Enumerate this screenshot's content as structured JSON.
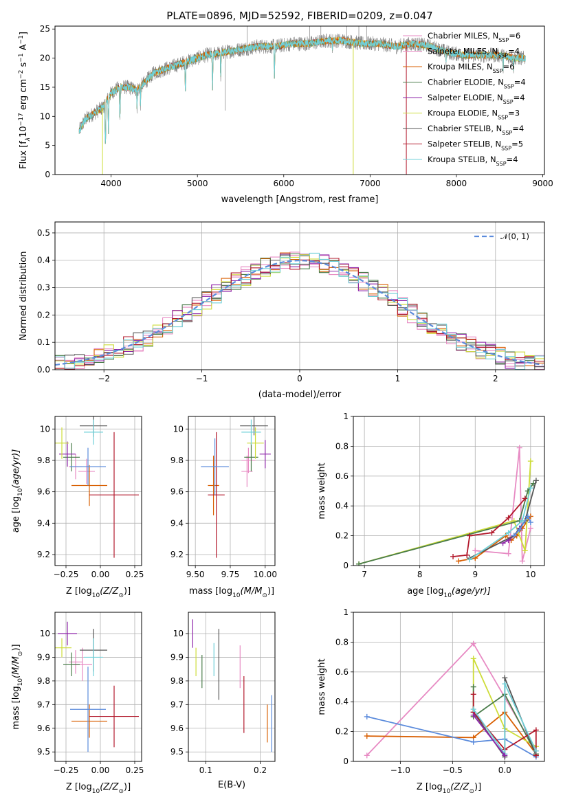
{
  "colors": {
    "Chabrier MILES": "#e78ac3",
    "Salpeter MILES": "#e78ac3",
    "Kroupa MILES": "#d95f02",
    "Chabrier ELODIE": "#4a7c4a",
    "Salpeter ELODIE": "#8e24aa",
    "Kroupa ELODIE": "#cddc39",
    "Chabrier STELIB": "#555555",
    "Salpeter STELIB": "#b2182b",
    "Kroupa STELIB": "#70d0d8",
    "blue": "#5b8bdc",
    "normal": "#5b8bdc"
  },
  "chart_data": [
    {
      "id": "spectrum",
      "type": "line",
      "title": "PLATE=0896, MJD=52592, FIBERID=0209, z=0.047",
      "xlabel": "wavelength [Angstrom, rest frame]",
      "ylabel_parts": [
        "Flux [f",
        "λ",
        "10",
        "−17",
        " erg cm",
        "−2",
        " s",
        "−1",
        " A",
        "−1",
        "]"
      ],
      "xlim": [
        3350,
        9020
      ],
      "ylim": [
        0,
        25.5
      ],
      "xticks": [
        4000,
        5000,
        6000,
        7000,
        8000,
        9000
      ],
      "yticks": [
        0,
        5,
        10,
        15,
        20,
        25
      ],
      "grid": false,
      "legend_position": "top-right",
      "legend": [
        {
          "model": "Chabrier MILES",
          "nssp": "6"
        },
        {
          "model": "Salpeter MILES",
          "nssp": "4"
        },
        {
          "model": "Kroupa MILES",
          "nssp": "6"
        },
        {
          "model": "Chabrier ELODIE",
          "nssp": "4"
        },
        {
          "model": "Salpeter ELODIE",
          "nssp": "4"
        },
        {
          "model": "Kroupa ELODIE",
          "nssp": "3"
        },
        {
          "model": "Chabrier STELIB",
          "nssp": "4"
        },
        {
          "model": "Salpeter STELIB",
          "nssp": "5"
        },
        {
          "model": "Kroupa STELIB",
          "nssp": "4"
        }
      ],
      "continuum": {
        "x": [
          3630,
          3700,
          3800,
          3900,
          4000,
          4100,
          4200,
          4300,
          4400,
          4500,
          4700,
          4900,
          5100,
          5300,
          5500,
          5700,
          5900,
          6100,
          6300,
          6500,
          6700,
          6900,
          7100,
          7300,
          7500,
          7700,
          7900,
          8100,
          8300,
          8500,
          8700,
          8800
        ],
        "y": [
          7.5,
          9.5,
          10.5,
          11.5,
          14.0,
          15.0,
          15.0,
          14.5,
          16.0,
          17.5,
          18.5,
          19.5,
          20.5,
          21.0,
          21.5,
          22.0,
          22.0,
          22.5,
          22.5,
          23.0,
          23.0,
          22.5,
          22.5,
          22.0,
          22.5,
          22.0,
          21.0,
          20.5,
          20.5,
          20.5,
          20.0,
          20.0
        ]
      },
      "absorption_lines": [
        {
          "x": 3934,
          "y": 4.5
        },
        {
          "x": 3969,
          "y": 7.0
        },
        {
          "x": 4102,
          "y": 9.0
        },
        {
          "x": 4300,
          "y": 10.5
        },
        {
          "x": 4340,
          "y": 11.0
        },
        {
          "x": 4861,
          "y": 13.5
        },
        {
          "x": 5175,
          "y": 14.5
        },
        {
          "x": 5270,
          "y": 16.0
        },
        {
          "x": 5892,
          "y": 16.5
        },
        {
          "x": 6563,
          "y": 20.5
        },
        {
          "x": 7880,
          "y": 18.5
        },
        {
          "x": 8542,
          "y": 17.0
        },
        {
          "x": 8662,
          "y": 17.0
        }
      ],
      "data_spikes": [
        {
          "x": 5577,
          "y": 25.5
        },
        {
          "x": 6300,
          "y": 25.5
        },
        {
          "x": 6430,
          "y": 25.5
        },
        {
          "x": 6730,
          "y": 25.5
        },
        {
          "x": 6870,
          "y": 25.5
        },
        {
          "x": 6960,
          "y": 25.5
        },
        {
          "x": 5320,
          "y": 11.0
        }
      ],
      "model_drops": [
        {
          "x": 3900,
          "y": 0,
          "model": "Kroupa ELODIE"
        },
        {
          "x": 6805,
          "y": 0,
          "model": "Kroupa ELODIE"
        },
        {
          "x": 7420,
          "y": 0,
          "model": "Salpeter STELIB"
        }
      ]
    },
    {
      "id": "residuals",
      "type": "histogram",
      "xlabel": "(data-model)/error",
      "ylabel": "Normed distribution",
      "xlim": [
        -2.5,
        2.5
      ],
      "ylim": [
        0,
        0.54
      ],
      "xticks": [
        -2,
        -1,
        0,
        1,
        2
      ],
      "yticks": [
        0.0,
        0.1,
        0.2,
        0.3,
        0.4,
        0.5
      ],
      "grid": true,
      "legend_position": "top-right",
      "legend": [
        {
          "name": "𝒩(0, 1)"
        }
      ],
      "bin_width": 0.1,
      "series_models": [
        "Chabrier MILES",
        "Salpeter MILES",
        "Kroupa MILES",
        "Chabrier ELODIE",
        "Salpeter ELODIE",
        "Kroupa ELODIE",
        "Chabrier STELIB",
        "Salpeter STELIB",
        "Kroupa STELIB"
      ]
    },
    {
      "id": "age-vs-z",
      "type": "scatter",
      "xlabel_parts": [
        "Z [log",
        "10",
        "(Z/Z",
        "⊙",
        ")]"
      ],
      "ylabel_parts": [
        "age  [log",
        "10",
        "(age/yr)]"
      ],
      "xlim": [
        -0.33,
        0.3
      ],
      "ylim": [
        9.13,
        10.08
      ],
      "xticks": [
        -0.25,
        0.0,
        0.25
      ],
      "xtick_labels": [
        "−0.25",
        "0.00",
        "0.25"
      ],
      "yticks": [
        9.2,
        9.4,
        9.6,
        9.8,
        10.0
      ],
      "grid": true,
      "points": [
        {
          "model": "Chabrier MILES",
          "x": -0.1,
          "xerr": 0.06,
          "y": 9.73,
          "yerr": 0.08
        },
        {
          "model": "Salpeter MILES",
          "x": -0.18,
          "xerr": 0.05,
          "y": 9.76,
          "yerr": 0.08
        },
        {
          "model": "Kroupa MILES",
          "x": -0.08,
          "xerr": 0.13,
          "y": 9.64,
          "yerr": 0.13
        },
        {
          "model": "Chabrier ELODIE",
          "x": -0.21,
          "xerr": 0.06,
          "y": 9.82,
          "yerr": 0.09
        },
        {
          "model": "Salpeter ELODIE",
          "x": -0.24,
          "xerr": 0.06,
          "y": 9.84,
          "yerr": 0.08
        },
        {
          "model": "Kroupa ELODIE",
          "x": -0.28,
          "xerr": 0.05,
          "y": 9.91,
          "yerr": 0.1
        },
        {
          "model": "Chabrier STELIB",
          "x": -0.05,
          "xerr": 0.1,
          "y": 10.02,
          "yerr": 0.07
        },
        {
          "model": "Salpeter STELIB",
          "x": 0.1,
          "xerr": 0.18,
          "y": 9.58,
          "yerr": 0.4
        },
        {
          "model": "Kroupa STELIB",
          "x": -0.05,
          "xerr": 0.07,
          "y": 9.98,
          "yerr": 0.08
        },
        {
          "model": "blue",
          "x": -0.09,
          "xerr": 0.13,
          "y": 9.76,
          "yerr": 0.12
        }
      ]
    },
    {
      "id": "age-vs-mass",
      "type": "scatter",
      "xlabel_parts": [
        "mass [log",
        "10",
        "(M/M",
        "⊙",
        ")]"
      ],
      "ylabel_parts": [],
      "xlim": [
        9.45,
        10.07
      ],
      "ylim": [
        9.13,
        10.08
      ],
      "xticks": [
        9.5,
        9.75,
        10.0
      ],
      "xtick_labels": [
        "9.50",
        "9.75",
        "10.00"
      ],
      "yticks": [
        9.2,
        9.4,
        9.6,
        9.8,
        10.0
      ],
      "grid": true,
      "points": [
        {
          "model": "Chabrier MILES",
          "x": 9.87,
          "xerr": 0.04,
          "y": 9.73,
          "yerr": 0.1
        },
        {
          "model": "Salpeter MILES",
          "x": 9.88,
          "xerr": 0.05,
          "y": 9.8,
          "yerr": 0.08
        },
        {
          "model": "Kroupa MILES",
          "x": 9.63,
          "xerr": 0.04,
          "y": 9.64,
          "yerr": 0.19
        },
        {
          "model": "Chabrier ELODIE",
          "x": 9.9,
          "xerr": 0.05,
          "y": 9.82,
          "yerr": 0.09
        },
        {
          "model": "Salpeter ELODIE",
          "x": 10.0,
          "xerr": 0.04,
          "y": 9.84,
          "yerr": 0.09
        },
        {
          "model": "Kroupa ELODIE",
          "x": 9.93,
          "xerr": 0.06,
          "y": 9.91,
          "yerr": 0.1
        },
        {
          "model": "Chabrier STELIB",
          "x": 9.92,
          "xerr": 0.1,
          "y": 10.02,
          "yerr": 0.06
        },
        {
          "model": "Salpeter STELIB",
          "x": 9.65,
          "xerr": 0.06,
          "y": 9.58,
          "yerr": 0.4
        },
        {
          "model": "Kroupa STELIB",
          "x": 9.9,
          "xerr": 0.07,
          "y": 9.98,
          "yerr": 0.08
        },
        {
          "model": "blue",
          "x": 9.64,
          "xerr": 0.1,
          "y": 9.76,
          "yerr": 0.18
        }
      ]
    },
    {
      "id": "weight-vs-age",
      "type": "line",
      "xlabel_parts": [
        "age  [log",
        "10",
        "(age/yr)]"
      ],
      "ylabel": "mass weight",
      "xlim": [
        6.8,
        10.25
      ],
      "ylim": [
        0,
        1.0
      ],
      "xticks": [
        7,
        8,
        9,
        10
      ],
      "yticks": [
        0.0,
        0.2,
        0.4,
        0.6,
        0.8,
        1.0
      ],
      "grid": true,
      "series": [
        {
          "model": "Chabrier MILES",
          "x": [
            9.0,
            9.6,
            9.8,
            9.85,
            10.0
          ],
          "y": [
            0.1,
            0.08,
            0.79,
            0.03,
            0.25
          ]
        },
        {
          "model": "Kroupa MILES",
          "x": [
            8.7,
            9.0,
            9.55,
            9.65,
            9.75,
            9.85,
            10.0
          ],
          "y": [
            0.03,
            0.05,
            0.2,
            0.17,
            0.2,
            0.25,
            0.33
          ]
        },
        {
          "model": "Kroupa ELODIE",
          "x": [
            6.9,
            9.7,
            9.9,
            10.0
          ],
          "y": [
            0.01,
            0.3,
            0.1,
            0.7
          ]
        },
        {
          "model": "Chabrier ELODIE",
          "x": [
            6.9,
            9.8,
            9.95,
            10.05
          ],
          "y": [
            0.01,
            0.3,
            0.5,
            0.55
          ]
        },
        {
          "model": "Salpeter ELODIE",
          "x": [
            9.5,
            9.6,
            9.7,
            9.8
          ],
          "y": [
            0.15,
            0.17,
            0.2,
            0.25
          ]
        },
        {
          "model": "Chabrier STELIB",
          "x": [
            8.9,
            9.7,
            9.9,
            10.1
          ],
          "y": [
            0.05,
            0.2,
            0.3,
            0.57
          ]
        },
        {
          "model": "Salpeter STELIB",
          "x": [
            8.6,
            8.85,
            8.9,
            9.3,
            9.6,
            9.9
          ],
          "y": [
            0.06,
            0.07,
            0.2,
            0.22,
            0.32,
            0.45
          ]
        },
        {
          "model": "Kroupa STELIB",
          "x": [
            8.9,
            9.6,
            9.85,
            10.0
          ],
          "y": [
            0.04,
            0.22,
            0.3,
            0.52
          ]
        },
        {
          "model": "blue",
          "x": [
            9.7,
            9.8,
            9.95,
            10.0
          ],
          "y": [
            0.2,
            0.24,
            0.33,
            0.29
          ]
        }
      ]
    },
    {
      "id": "mass-vs-z",
      "type": "scatter",
      "xlabel_parts": [
        "Z [log",
        "10",
        "(Z/Z",
        "⊙",
        ")]"
      ],
      "ylabel_parts": [
        "mass [log",
        "10",
        "(M/M",
        "⊙",
        ")]"
      ],
      "xlim": [
        -0.33,
        0.3
      ],
      "ylim": [
        9.46,
        10.09
      ],
      "xticks": [
        -0.25,
        0.0,
        0.25
      ],
      "xtick_labels": [
        "−0.25",
        "0.00",
        "0.25"
      ],
      "yticks": [
        9.5,
        9.6,
        9.7,
        9.8,
        9.9,
        10.0
      ],
      "grid": true,
      "points": [
        {
          "model": "Chabrier MILES",
          "x": -0.13,
          "xerr": 0.07,
          "y": 9.87,
          "yerr": 0.07
        },
        {
          "model": "Salpeter MILES",
          "x": -0.18,
          "xerr": 0.05,
          "y": 9.88,
          "yerr": 0.05
        },
        {
          "model": "Kroupa MILES",
          "x": -0.08,
          "xerr": 0.13,
          "y": 9.63,
          "yerr": 0.07
        },
        {
          "model": "Chabrier ELODIE",
          "x": -0.21,
          "xerr": 0.06,
          "y": 9.87,
          "yerr": 0.05
        },
        {
          "model": "Salpeter ELODIE",
          "x": -0.24,
          "xerr": 0.07,
          "y": 10.0,
          "yerr": 0.05
        },
        {
          "model": "Kroupa ELODIE",
          "x": -0.28,
          "xerr": 0.07,
          "y": 9.94,
          "yerr": 0.04
        },
        {
          "model": "Chabrier STELIB",
          "x": -0.05,
          "xerr": 0.1,
          "y": 9.93,
          "yerr": 0.09
        },
        {
          "model": "Salpeter STELIB",
          "x": 0.1,
          "xerr": 0.18,
          "y": 9.65,
          "yerr": 0.13
        },
        {
          "model": "Kroupa STELIB",
          "x": -0.05,
          "xerr": 0.07,
          "y": 9.9,
          "yerr": 0.08
        },
        {
          "model": "blue",
          "x": -0.09,
          "xerr": 0.13,
          "y": 9.68,
          "yerr": 0.18
        }
      ]
    },
    {
      "id": "mass-vs-ebv",
      "type": "scatter",
      "xlabel": "E(B-V)",
      "ylabel_parts": [],
      "xlim": [
        0.068,
        0.227
      ],
      "ylim": [
        9.46,
        10.09
      ],
      "xticks": [
        0.1,
        0.2
      ],
      "xtick_labels": [
        "0.1",
        "0.2"
      ],
      "yticks": [
        9.5,
        9.6,
        9.7,
        9.8,
        9.9,
        10.0
      ],
      "grid": true,
      "points": [
        {
          "model": "Chabrier MILES",
          "x": 0.163,
          "xerr": 0,
          "y": 9.86,
          "yerr": 0.09
        },
        {
          "model": "Kroupa MILES",
          "x": 0.213,
          "xerr": 0,
          "y": 9.62,
          "yerr": 0.08
        },
        {
          "model": "Chabrier ELODIE",
          "x": 0.093,
          "xerr": 0,
          "y": 9.84,
          "yerr": 0.07
        },
        {
          "model": "Salpeter ELODIE",
          "x": 0.076,
          "xerr": 0,
          "y": 10.0,
          "yerr": 0.06
        },
        {
          "model": "Kroupa ELODIE",
          "x": 0.082,
          "xerr": 0,
          "y": 9.88,
          "yerr": 0.06
        },
        {
          "model": "Chabrier STELIB",
          "x": 0.124,
          "xerr": 0,
          "y": 9.87,
          "yerr": 0.15
        },
        {
          "model": "Salpeter STELIB",
          "x": 0.17,
          "xerr": 0,
          "y": 9.7,
          "yerr": 0.12
        },
        {
          "model": "Kroupa STELIB",
          "x": 0.115,
          "xerr": 0,
          "y": 9.89,
          "yerr": 0.07
        },
        {
          "model": "blue",
          "x": 0.221,
          "xerr": 0,
          "y": 9.62,
          "yerr": 0.12
        }
      ]
    },
    {
      "id": "weight-vs-z",
      "type": "line",
      "xlabel_parts": [
        "Z [log",
        "10",
        "(Z/Z",
        "⊙",
        ")]"
      ],
      "ylabel": "mass weight",
      "xlim": [
        -1.45,
        0.38
      ],
      "ylim": [
        0,
        1.0
      ],
      "xticks": [
        -1.0,
        -0.5,
        0.0
      ],
      "xtick_labels": [
        "−1.0",
        "−0.5",
        "0.0"
      ],
      "yticks": [
        0.0,
        0.2,
        0.4,
        0.6,
        0.8,
        1.0
      ],
      "grid": true,
      "series": [
        {
          "model": "Chabrier MILES",
          "x": [
            -1.32,
            -0.3,
            0.3
          ],
          "y": [
            0.04,
            0.79,
            0.07
          ]
        },
        {
          "model": "Kroupa MILES",
          "x": [
            -1.32,
            -0.3,
            0.0,
            0.3
          ],
          "y": [
            0.17,
            0.16,
            0.33,
            0.05
          ]
        },
        {
          "model": "blue",
          "x": [
            -1.32,
            -0.3,
            0.0,
            0.3
          ],
          "y": [
            0.3,
            0.13,
            0.15,
            0.03
          ]
        },
        {
          "model": "Kroupa ELODIE",
          "x": [
            -0.3,
            -0.3,
            0.0,
            0.3
          ],
          "y": [
            0.3,
            0.69,
            0.22,
            0.1
          ]
        },
        {
          "model": "Chabrier ELODIE",
          "x": [
            -0.3,
            -0.3,
            0.0,
            0.3
          ],
          "y": [
            0.5,
            0.3,
            0.45,
            0.05
          ]
        },
        {
          "model": "Chabrier STELIB",
          "x": [
            -0.3,
            0.0,
            0.0,
            0.3
          ],
          "y": [
            0.33,
            0.03,
            0.56,
            0.04
          ]
        },
        {
          "model": "Salpeter STELIB",
          "x": [
            -0.3,
            -0.3,
            0.0,
            0.3,
            0.3
          ],
          "y": [
            0.45,
            0.33,
            0.08,
            0.21,
            0.04
          ]
        },
        {
          "model": "Kroupa STELIB",
          "x": [
            -0.3,
            0.0,
            0.0,
            0.3
          ],
          "y": [
            0.35,
            0.05,
            0.52,
            0.07
          ]
        },
        {
          "model": "Salpeter ELODIE",
          "x": [
            -0.3,
            0.0
          ],
          "y": [
            0.31,
            0.04
          ]
        }
      ]
    }
  ]
}
